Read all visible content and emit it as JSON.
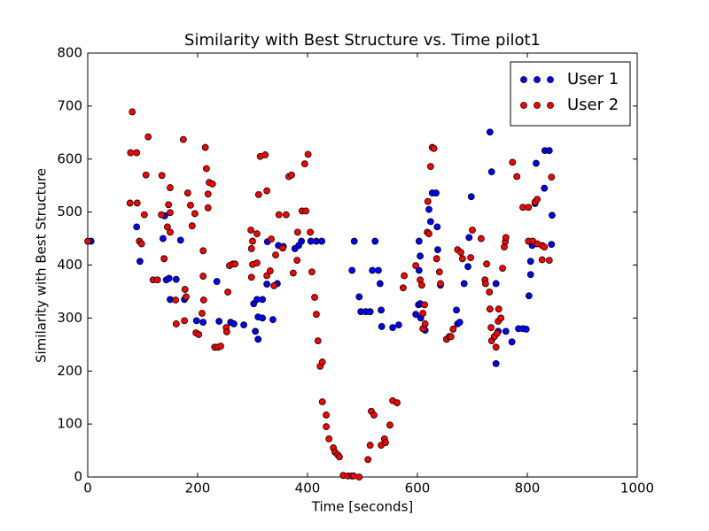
{
  "chart_data": {
    "type": "scatter",
    "title": "Similarity with Best Structure vs. Time pilot1",
    "x_label": "Time [seconds]",
    "y_label": "Similarity with Best Structure",
    "xlim": [
      0,
      1000
    ],
    "xticks": [
      0,
      200,
      400,
      600,
      800,
      1000
    ],
    "ylim": [
      0,
      800
    ],
    "yticks": [
      0,
      100,
      200,
      300,
      400,
      500,
      600,
      700,
      800
    ],
    "grid": false,
    "legend": "upper right",
    "series": [
      {
        "name": "User 1",
        "color": "#0000ff",
        "x": [
          6,
          89,
          95,
          137,
          140,
          143,
          148,
          150,
          161,
          169,
          176,
          198,
          210,
          235,
          239,
          260,
          266,
          284,
          302,
          305,
          308,
          310,
          310,
          318,
          318,
          326,
          327,
          337,
          345,
          347,
          356,
          377,
          384,
          389,
          406,
          416,
          426,
          481,
          485,
          494,
          497,
          506,
          514,
          518,
          523,
          529,
          532,
          534,
          535,
          555,
          566,
          597,
          602,
          603,
          605,
          603,
          605,
          606,
          614,
          621,
          624,
          627,
          634,
          636,
          637,
          642,
          671,
          673,
          677,
          685,
          692,
          694,
          698,
          732,
          735,
          743,
          743,
          747,
          761,
          772,
          784,
          792,
          798,
          803,
          806,
          806,
          809,
          814,
          816,
          831,
          832,
          840,
          844,
          845
        ],
        "values": [
          445,
          472,
          407,
          450,
          493,
          372,
          375,
          335,
          373,
          447,
          335,
          295,
          292,
          369,
          294,
          292,
          289,
          287,
          327,
          275,
          335,
          260,
          302,
          335,
          300,
          364,
          444,
          297,
          365,
          437,
          435,
          431,
          437,
          445,
          445,
          445,
          445,
          390,
          445,
          340,
          312,
          312,
          312,
          390,
          445,
          390,
          365,
          315,
          284,
          282,
          287,
          307,
          325,
          445,
          417,
          390,
          327,
          300,
          277,
          505,
          482,
          536,
          536,
          472,
          429,
          362,
          315,
          289,
          292,
          365,
          397,
          452,
          529,
          651,
          576,
          214,
          365,
          275,
          275,
          255,
          280,
          280,
          279,
          342,
          407,
          382,
          437,
          516,
          592,
          545,
          616,
          616,
          439,
          494
        ]
      },
      {
        "name": "User 2",
        "color": "#ff0000",
        "x": [
          0,
          77,
          78,
          81,
          89,
          90,
          94,
          98,
          103,
          106,
          110,
          119,
          127,
          134,
          135,
          139,
          145,
          147,
          150,
          150,
          150,
          160,
          161,
          174,
          176,
          177,
          179,
          182,
          187,
          190,
          195,
          197,
          202,
          208,
          210,
          211,
          210,
          214,
          216,
          219,
          219,
          221,
          227,
          231,
          237,
          242,
          252,
          253,
          255,
          258,
          264,
          268,
          297,
          298,
          300,
          298,
          300,
          308,
          308,
          311,
          314,
          323,
          326,
          326,
          332,
          334,
          339,
          342,
          348,
          355,
          361,
          366,
          371,
          374,
          381,
          382,
          390,
          395,
          397,
          401,
          405,
          408,
          413,
          416,
          419,
          423,
          427,
          427,
          434,
          434,
          439,
          447,
          450,
          455,
          458,
          465,
          474,
          481,
          484,
          494,
          510,
          514,
          516,
          521,
          534,
          540,
          542,
          550,
          555,
          563,
          574,
          576,
          597,
          605,
          608,
          610,
          610,
          613,
          614,
          618,
          619,
          621,
          624,
          627,
          630,
          635,
          640,
          642,
          653,
          658,
          661,
          665,
          673,
          679,
          682,
          697,
          700,
          716,
          723,
          724,
          726,
          731,
          732,
          734,
          735,
          740,
          743,
          745,
          747,
          748,
          752,
          755,
          758,
          760,
          761,
          773,
          781,
          792,
          802,
          802,
          810,
          814,
          818,
          818,
          827,
          827,
          831,
          840,
          844
        ],
        "values": [
          445,
          517,
          612,
          689,
          612,
          517,
          445,
          440,
          495,
          570,
          642,
          372,
          372,
          495,
          569,
          412,
          472,
          514,
          546,
          462,
          499,
          334,
          289,
          637,
          295,
          354,
          340,
          536,
          513,
          474,
          497,
          272,
          269,
          309,
          427,
          334,
          379,
          622,
          582,
          534,
          508,
          556,
          553,
          245,
          245,
          247,
          282,
          274,
          349,
          399,
          402,
          402,
          466,
          431,
          401,
          377,
          445,
          459,
          404,
          533,
          605,
          608,
          540,
          380,
          389,
          449,
          361,
          419,
          495,
          432,
          495,
          567,
          570,
          385,
          409,
          462,
          502,
          591,
          502,
          609,
          462,
          387,
          339,
          307,
          257,
          209,
          217,
          142,
          117,
          95,
          72,
          55,
          47,
          42,
          38,
          3,
          2,
          2,
          2,
          0,
          33,
          60,
          124,
          117,
          60,
          72,
          65,
          98,
          144,
          140,
          357,
          380,
          399,
          372,
          362,
          280,
          309,
          325,
          289,
          462,
          520,
          459,
          586,
          622,
          620,
          412,
          387,
          365,
          260,
          265,
          265,
          279,
          429,
          424,
          412,
          414,
          466,
          450,
          372,
          365,
          402,
          349,
          317,
          282,
          257,
          265,
          245,
          271,
          294,
          317,
          300,
          394,
          434,
          444,
          452,
          594,
          567,
          509,
          509,
          445,
          445,
          519,
          524,
          440,
          410,
          437,
          434,
          409,
          566
        ]
      }
    ]
  }
}
